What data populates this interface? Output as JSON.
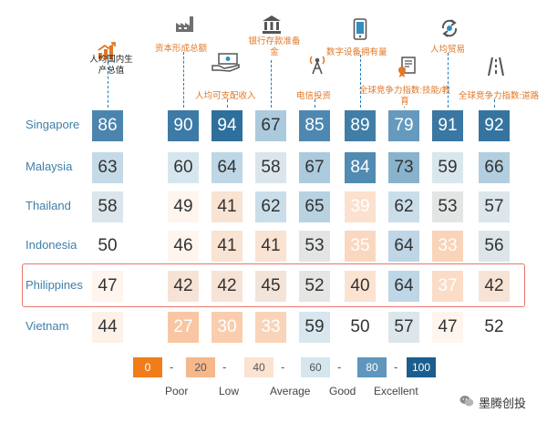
{
  "chart_data": {
    "type": "heatmap",
    "title": "",
    "columns": [
      {
        "key": "gdp",
        "label": "人均国内生产总值",
        "icon": "bar-growth-icon"
      },
      {
        "key": "capital",
        "label": "资本形成总额",
        "icon": "factory-icon"
      },
      {
        "key": "income",
        "label": "人均可支配收入",
        "icon": "cash-hand-icon"
      },
      {
        "key": "deposits",
        "label": "银行存款准备金",
        "icon": "bank-icon"
      },
      {
        "key": "telecom",
        "label": "电信投资",
        "icon": "antenna-icon"
      },
      {
        "key": "digital",
        "label": "数字设备拥有量",
        "icon": "phone-icon"
      },
      {
        "key": "skills",
        "label": "全球竞争力指数:技能/教育",
        "icon": "certificate-icon"
      },
      {
        "key": "trade",
        "label": "人均贸易",
        "icon": "trade-icon"
      },
      {
        "key": "roads",
        "label": "全球竞争力指数:道路",
        "icon": "road-icon"
      }
    ],
    "rows": [
      {
        "country": "Singapore",
        "values": [
          86,
          90,
          94,
          67,
          85,
          89,
          79,
          91,
          92
        ]
      },
      {
        "country": "Malaysia",
        "values": [
          63,
          60,
          64,
          58,
          67,
          84,
          73,
          59,
          66
        ]
      },
      {
        "country": "Thailand",
        "values": [
          58,
          49,
          41,
          62,
          65,
          39,
          62,
          53,
          57
        ]
      },
      {
        "country": "Indonesia",
        "values": [
          50,
          46,
          41,
          41,
          53,
          35,
          64,
          33,
          56
        ]
      },
      {
        "country": "Philippines",
        "values": [
          47,
          42,
          42,
          45,
          52,
          40,
          64,
          37,
          42
        ]
      },
      {
        "country": "Vietnam",
        "values": [
          44,
          27,
          30,
          33,
          59,
          50,
          57,
          47,
          52
        ]
      }
    ],
    "highlighted_row": "Philippines",
    "scale": {
      "min": 0,
      "max": 100,
      "stops": [
        {
          "value": 0,
          "label": "0",
          "color": "#f07d1a"
        },
        {
          "value": 20,
          "label": "20",
          "color": "#f6b78a"
        },
        {
          "value": 40,
          "label": "40",
          "color": "#fbe3d2"
        },
        {
          "value": 60,
          "label": "60",
          "color": "#d6e6ef"
        },
        {
          "value": 80,
          "label": "80",
          "color": "#5f96bb"
        },
        {
          "value": 100,
          "label": "100",
          "color": "#1b5e8e"
        }
      ],
      "separator": "-",
      "categories": [
        "Poor",
        "Low",
        "Average",
        "Good",
        "Excellent"
      ]
    }
  },
  "watermark": {
    "text": "墨腾创投",
    "icon": "wechat-icon"
  }
}
